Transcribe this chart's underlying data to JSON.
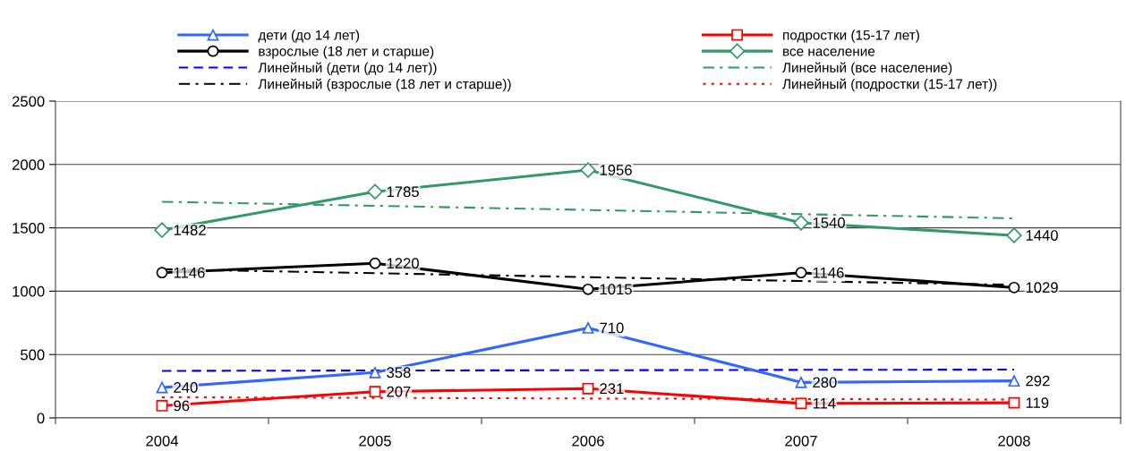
{
  "chart_data": {
    "type": "line",
    "categories": [
      "2004",
      "2005",
      "2006",
      "2007",
      "2008"
    ],
    "ylim": [
      0,
      2500
    ],
    "yticks": [
      0,
      500,
      1000,
      1500,
      2000,
      2500
    ],
    "grid": "y",
    "legend": "top",
    "series": [
      {
        "name": "дети (до 14 лет)",
        "color": "#3366ff",
        "marker": "triangle",
        "line_style": "solid",
        "data_labels": true,
        "values": [
          240,
          358,
          710,
          280,
          292
        ]
      },
      {
        "name": "взрослые (18 лет и старше)",
        "color": "#000000",
        "marker": "circle",
        "line_style": "solid",
        "data_labels": true,
        "values": [
          1146,
          1220,
          1015,
          1146,
          1029
        ]
      },
      {
        "name": "Линейный (дети (до 14 лет))",
        "color": "#0000ff",
        "marker": "none",
        "line_style": "dashed",
        "values": [
          371,
          374,
          376,
          379,
          381
        ]
      },
      {
        "name": "Линейный (взрослые (18 лет и старше))",
        "color": "#000000",
        "marker": "none",
        "line_style": "dashdot",
        "values": [
          1173,
          1142,
          1111,
          1080,
          1050
        ]
      },
      {
        "name": "подростки (15-17 лет)",
        "color": "#ff0000",
        "marker": "square",
        "line_style": "solid",
        "data_labels": true,
        "values": [
          96,
          207,
          231,
          114,
          119
        ]
      },
      {
        "name": "все население",
        "color": "#339966",
        "marker": "diamond",
        "line_style": "solid",
        "data_labels": true,
        "values": [
          1482,
          1785,
          1956,
          1540,
          1440
        ]
      },
      {
        "name": "Линейный (все население)",
        "color": "#339966",
        "marker": "none",
        "line_style": "dashdot",
        "values": [
          1706,
          1674,
          1641,
          1608,
          1575
        ]
      },
      {
        "name": "Линейный (подростки (15-17 лет))",
        "color": "#ff0000",
        "marker": "none",
        "line_style": "dotted",
        "values": [
          163,
          158,
          153,
          149,
          144
        ]
      }
    ]
  }
}
